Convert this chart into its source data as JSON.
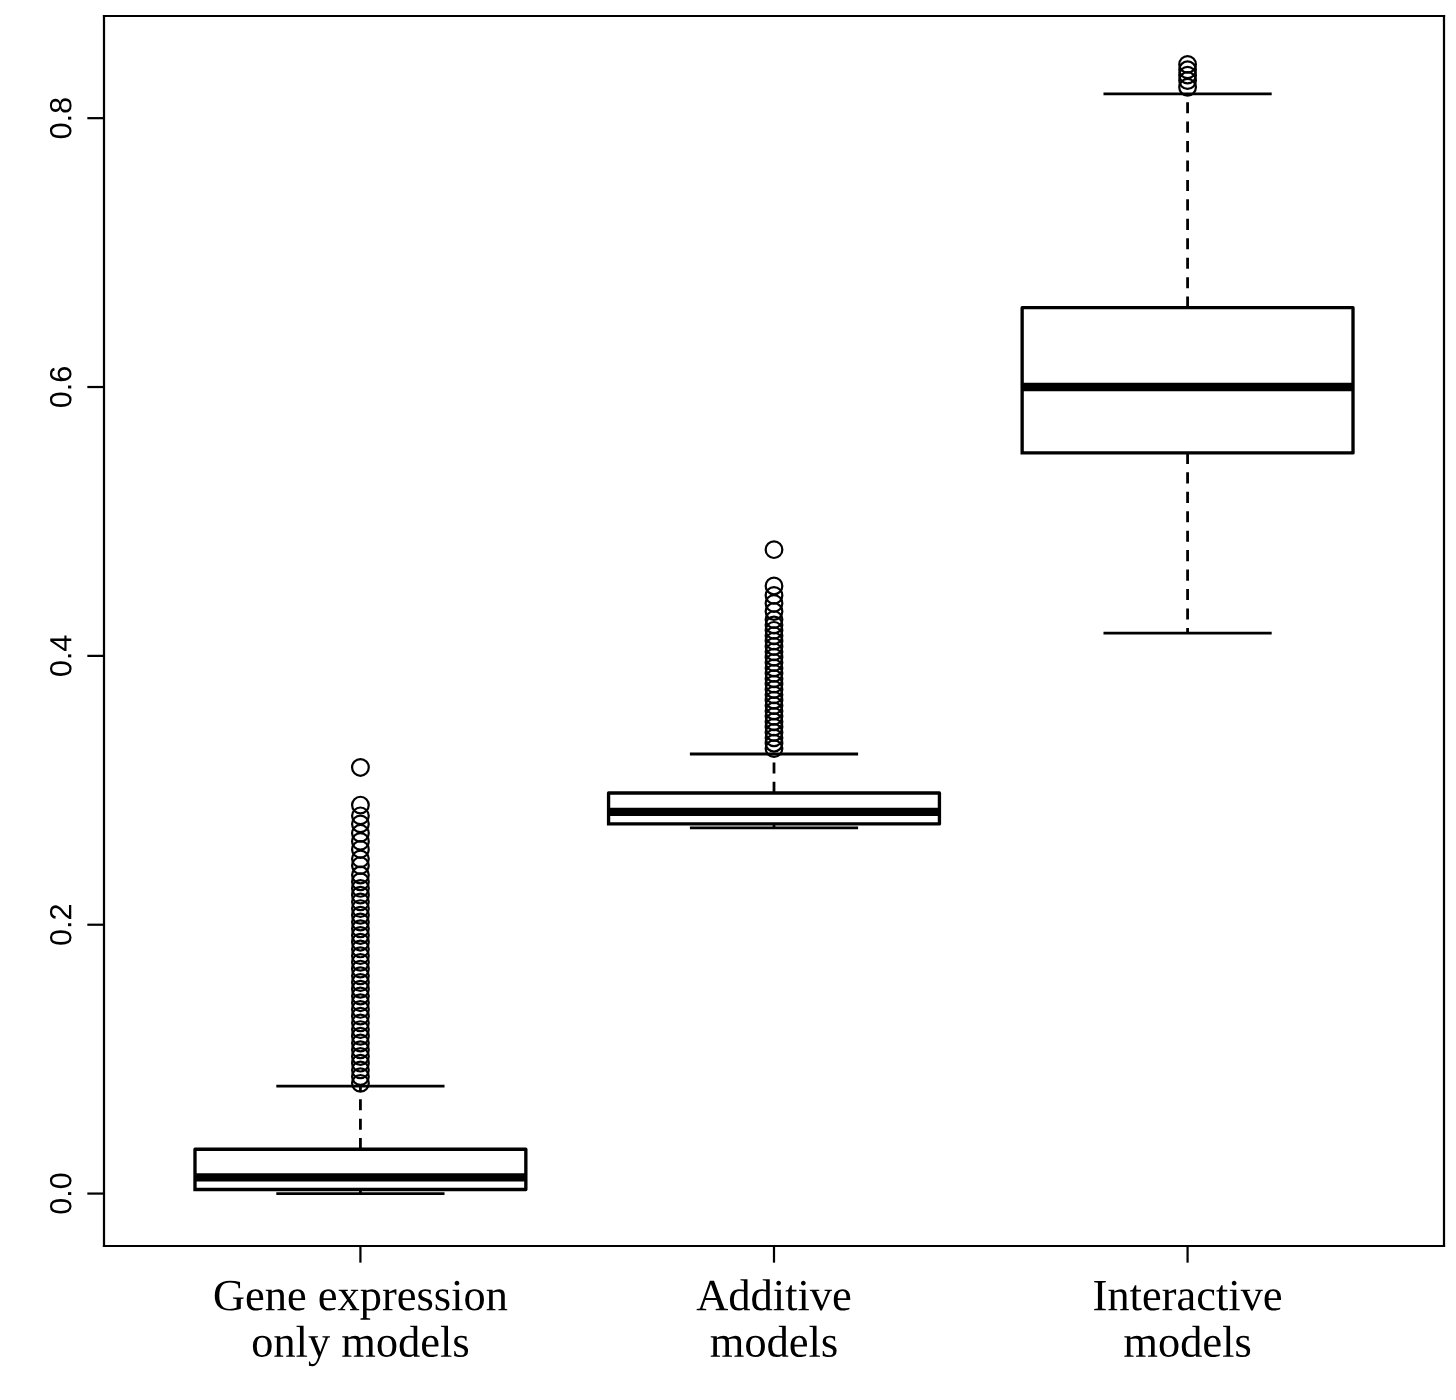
{
  "chart_data": {
    "type": "box",
    "categories": [
      "Gene expression\nonly models",
      "Additive\nmodels",
      "Interactive\nmodels"
    ],
    "ylim": [
      -0.039,
      0.876
    ],
    "yticks": [
      {
        "value": 0,
        "label": "0.0"
      },
      0.2,
      0.4,
      0.6,
      0.8
    ],
    "grid": false,
    "marker": "circle",
    "boxes": [
      {
        "low": 0.0,
        "q1": 0.003,
        "median": 0.012,
        "q3": 0.033,
        "high": 0.08,
        "outliers": [
          0.317,
          0.289,
          0.281,
          0.275,
          0.268,
          0.262,
          0.256,
          0.249,
          0.244,
          0.237,
          0.232,
          0.227,
          0.222,
          0.217,
          0.212,
          0.207,
          0.202,
          0.197,
          0.192,
          0.187,
          0.182,
          0.177,
          0.172,
          0.167,
          0.162,
          0.157,
          0.152,
          0.147,
          0.142,
          0.137,
          0.132,
          0.127,
          0.122,
          0.117,
          0.112,
          0.107,
          0.102,
          0.097,
          0.092,
          0.087,
          0.082
        ]
      },
      {
        "low": 0.272,
        "q1": 0.275,
        "median": 0.284,
        "q3": 0.298,
        "high": 0.327,
        "outliers": [
          0.479,
          0.452,
          0.445,
          0.439,
          0.433,
          0.427,
          0.423,
          0.419,
          0.415,
          0.411,
          0.407,
          0.403,
          0.399,
          0.395,
          0.391,
          0.387,
          0.383,
          0.379,
          0.375,
          0.371,
          0.367,
          0.363,
          0.359,
          0.355,
          0.351,
          0.347,
          0.343,
          0.339,
          0.335,
          0.331
        ]
      },
      {
        "low": 0.417,
        "q1": 0.551,
        "median": 0.6,
        "q3": 0.659,
        "high": 0.818,
        "outliers": [
          0.823,
          0.828,
          0.832,
          0.836,
          0.84
        ]
      }
    ]
  }
}
